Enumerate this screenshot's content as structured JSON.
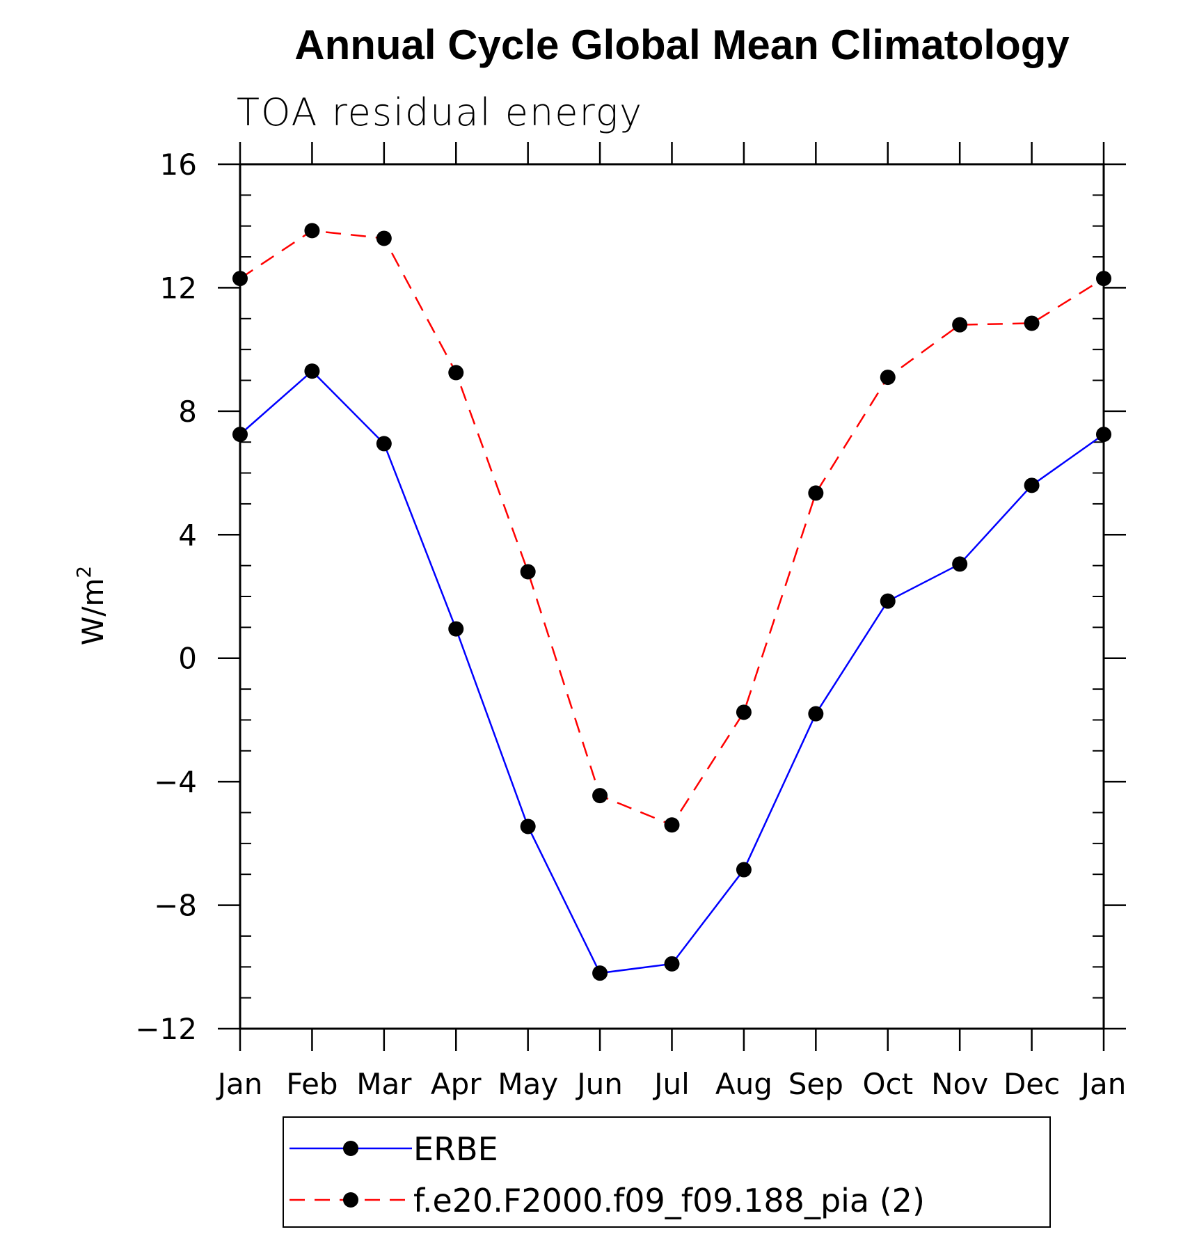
{
  "chart_data": {
    "type": "line",
    "title": "Annual Cycle Global Mean Climatology",
    "subtitle": "TOA residual energy",
    "ylabel_base": "W/m",
    "ylabel_sup": "2",
    "xlabel": "",
    "categories": [
      "Jan",
      "Feb",
      "Mar",
      "Apr",
      "May",
      "Jun",
      "Jul",
      "Aug",
      "Sep",
      "Oct",
      "Nov",
      "Dec",
      "Jan"
    ],
    "ylim": [
      -12,
      16
    ],
    "yticks": [
      -12,
      -8,
      -4,
      0,
      4,
      8,
      12,
      16
    ],
    "ytick_labels": [
      "−12",
      "−8",
      "−4",
      "0",
      "4",
      "8",
      "12",
      "16"
    ],
    "grid": false,
    "legend_position": "bottom",
    "series": [
      {
        "name": "ERBE",
        "color": "#0000ff",
        "style": "solid",
        "values": [
          7.25,
          9.3,
          6.95,
          0.95,
          -5.45,
          -10.2,
          -9.9,
          -6.85,
          -1.8,
          1.85,
          3.05,
          5.6,
          7.25
        ]
      },
      {
        "name": "f.e20.F2000.f09_f09.188_pia (2)",
        "color": "#ff0000",
        "style": "dashed",
        "values": [
          12.3,
          13.85,
          13.6,
          9.25,
          2.8,
          -4.45,
          -5.4,
          -1.75,
          5.35,
          9.1,
          10.8,
          10.85,
          12.3
        ]
      }
    ]
  }
}
